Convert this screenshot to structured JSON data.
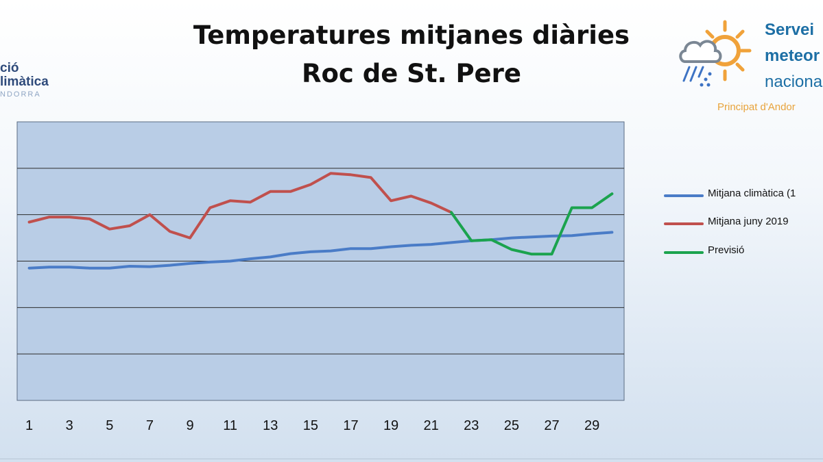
{
  "title": {
    "line1": "Temperatures mitjanes diàries",
    "line2": "Roc de St. Pere"
  },
  "logo_left": {
    "line1": "ció",
    "line2": "limàtica",
    "line3": "NDORRA"
  },
  "logo_right": {
    "line1": "Servei",
    "line2": "meteor",
    "line3": "naciona",
    "line4": "Principat d'Andor",
    "icon": "sun-cloud-rain-icon"
  },
  "colors": {
    "blue": "#4a7cc7",
    "red": "#c0504d",
    "green": "#1ba34e",
    "plot_bg": "#b9cde6",
    "grid": "#2b2b2b"
  },
  "chart_data": {
    "type": "line",
    "title": "Temperatures mitjanes diàries Roc de St. Pere",
    "xlabel": "",
    "ylabel": "",
    "x_ticks": [
      1,
      3,
      5,
      7,
      9,
      11,
      13,
      15,
      17,
      19,
      21,
      23,
      25,
      27,
      29
    ],
    "xlim": [
      0.4,
      30.6
    ],
    "ylim": [
      0,
      6
    ],
    "gridlines_y": [
      1,
      2,
      3,
      4,
      5
    ],
    "grid": true,
    "legend_position": "right",
    "series": [
      {
        "name": "Mitjana climàtica (1",
        "color_key": "blue",
        "x": [
          1,
          2,
          3,
          4,
          5,
          6,
          7,
          8,
          9,
          10,
          11,
          12,
          13,
          14,
          15,
          16,
          17,
          18,
          19,
          20,
          21,
          22,
          23,
          24,
          25,
          26,
          27,
          28,
          29,
          30
        ],
        "values": [
          2.85,
          2.87,
          2.87,
          2.85,
          2.85,
          2.89,
          2.88,
          2.91,
          2.95,
          2.98,
          3.0,
          3.05,
          3.09,
          3.16,
          3.2,
          3.22,
          3.27,
          3.27,
          3.31,
          3.34,
          3.36,
          3.4,
          3.44,
          3.46,
          3.5,
          3.52,
          3.54,
          3.55,
          3.59,
          3.62
        ]
      },
      {
        "name": "Mitjana juny 2019",
        "color_key": "red",
        "x": [
          1,
          2,
          3,
          4,
          5,
          6,
          7,
          8,
          9,
          10,
          11,
          12,
          13,
          14,
          15,
          16,
          17,
          18,
          19,
          20,
          21,
          22
        ],
        "values": [
          3.84,
          3.95,
          3.95,
          3.91,
          3.69,
          3.76,
          4.0,
          3.64,
          3.5,
          4.15,
          4.3,
          4.27,
          4.5,
          4.5,
          4.65,
          4.89,
          4.86,
          4.8,
          4.3,
          4.4,
          4.25,
          4.05
        ]
      },
      {
        "name": "Previsió",
        "color_key": "green",
        "x": [
          22,
          23,
          24,
          25,
          26,
          27,
          28,
          29,
          30
        ],
        "values": [
          4.05,
          3.44,
          3.46,
          3.25,
          3.15,
          3.15,
          4.15,
          4.15,
          4.45
        ]
      }
    ]
  }
}
